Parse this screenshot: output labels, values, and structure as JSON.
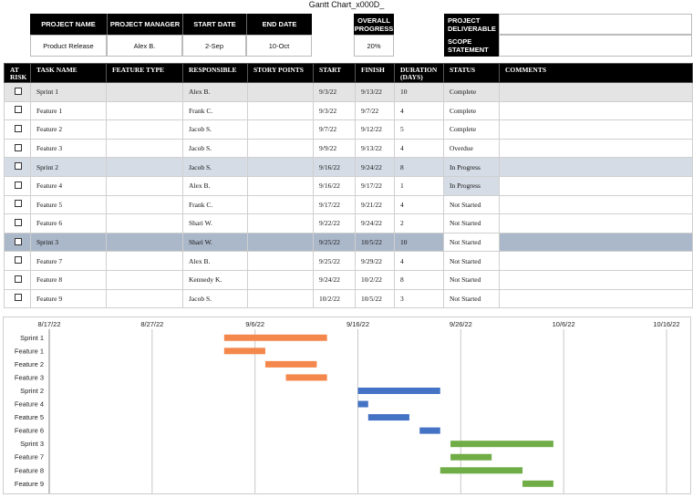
{
  "title": "Gantt Chart_x000D_",
  "project": {
    "headers": [
      "PROJECT NAME",
      "PROJECT MANAGER",
      "START DATE",
      "END DATE"
    ],
    "values": [
      "Product Release",
      "Alex B.",
      "2-Sep",
      "10-Oct"
    ]
  },
  "overall": {
    "header": "OVERALL PROGRESS",
    "value": "20%"
  },
  "deliverable_label": "PROJECT DELIVERABLE",
  "scope_label": "SCOPE STATEMENT",
  "columns": [
    "AT RISK",
    "TASK NAME",
    "FEATURE TYPE",
    "RESPONSIBLE",
    "STORY POINTS",
    "START",
    "FINISH",
    "DURATION (DAYS)",
    "STATUS",
    "COMMENTS"
  ],
  "tasks": [
    {
      "name": "Sprint 1",
      "type": "",
      "resp": "Alex B.",
      "points": "",
      "start": "9/3/22",
      "finish": "9/13/22",
      "dur": "10",
      "status": "Complete",
      "comments": ""
    },
    {
      "name": "Feature 1",
      "type": "",
      "resp": "Frank C.",
      "points": "",
      "start": "9/3/22",
      "finish": "9/7/22",
      "dur": "4",
      "status": "Complete",
      "comments": ""
    },
    {
      "name": "Feature 2",
      "type": "",
      "resp": "Jacob S.",
      "points": "",
      "start": "9/7/22",
      "finish": "9/12/22",
      "dur": "5",
      "status": "Complete",
      "comments": ""
    },
    {
      "name": "Feature 3",
      "type": "",
      "resp": "Jacob S.",
      "points": "",
      "start": "9/9/22",
      "finish": "9/13/22",
      "dur": "4",
      "status": "Overdue",
      "comments": ""
    },
    {
      "name": "Sprint 2",
      "type": "",
      "resp": "Jacob S.",
      "points": "",
      "start": "9/16/22",
      "finish": "9/24/22",
      "dur": "8",
      "status": "In Progress",
      "comments": ""
    },
    {
      "name": "Feature 4",
      "type": "",
      "resp": "Alex B.",
      "points": "",
      "start": "9/16/22",
      "finish": "9/17/22",
      "dur": "1",
      "status": "In Progress",
      "comments": ""
    },
    {
      "name": "Feature 5",
      "type": "",
      "resp": "Frank C.",
      "points": "",
      "start": "9/17/22",
      "finish": "9/21/22",
      "dur": "4",
      "status": "Not Started",
      "comments": ""
    },
    {
      "name": "Feature 6",
      "type": "",
      "resp": "Shari W.",
      "points": "",
      "start": "9/22/22",
      "finish": "9/24/22",
      "dur": "2",
      "status": "Not Started",
      "comments": ""
    },
    {
      "name": "Sprint 3",
      "type": "",
      "resp": "Shari W.",
      "points": "",
      "start": "9/25/22",
      "finish": "10/5/22",
      "dur": "10",
      "status": "Not Started",
      "comments": ""
    },
    {
      "name": "Feature 7",
      "type": "",
      "resp": "Alex B.",
      "points": "",
      "start": "9/25/22",
      "finish": "9/29/22",
      "dur": "4",
      "status": "Not Started",
      "comments": ""
    },
    {
      "name": "Feature 8",
      "type": "",
      "resp": "Kennedy K.",
      "points": "",
      "start": "9/24/22",
      "finish": "10/2/22",
      "dur": "8",
      "status": "Not Started",
      "comments": ""
    },
    {
      "name": "Feature 9",
      "type": "",
      "resp": "Jacob S.",
      "points": "",
      "start": "10/2/22",
      "finish": "10/5/22",
      "dur": "3",
      "status": "Not Started",
      "comments": ""
    }
  ],
  "chart_data": {
    "type": "bar",
    "orientation": "horizontal-gantt",
    "x_ticks": [
      "8/17/22",
      "8/27/22",
      "9/6/22",
      "9/16/22",
      "9/26/22",
      "10/6/22",
      "10/16/22"
    ],
    "x_range": [
      "2022-08-17",
      "2022-10-16"
    ],
    "grid": true,
    "categories": [
      "Sprint 1",
      "Feature 1",
      "Feature 2",
      "Feature 3",
      "Sprint 2",
      "Feature 4",
      "Feature 5",
      "Feature 6",
      "Sprint 3",
      "Feature 7",
      "Feature 8",
      "Feature 9"
    ],
    "start": [
      "2022-09-03",
      "2022-09-03",
      "2022-09-07",
      "2022-09-09",
      "2022-09-16",
      "2022-09-16",
      "2022-09-17",
      "2022-09-22",
      "2022-09-25",
      "2022-09-25",
      "2022-09-24",
      "2022-10-02"
    ],
    "end": [
      "2022-09-13",
      "2022-09-07",
      "2022-09-12",
      "2022-09-13",
      "2022-09-24",
      "2022-09-17",
      "2022-09-21",
      "2022-09-24",
      "2022-10-05",
      "2022-09-29",
      "2022-10-02",
      "2022-10-05"
    ],
    "colors": [
      "#f4874b",
      "#f4874b",
      "#f4874b",
      "#f4874b",
      "#4472c4",
      "#4472c4",
      "#4472c4",
      "#4472c4",
      "#70ad47",
      "#70ad47",
      "#70ad47",
      "#70ad47"
    ]
  }
}
